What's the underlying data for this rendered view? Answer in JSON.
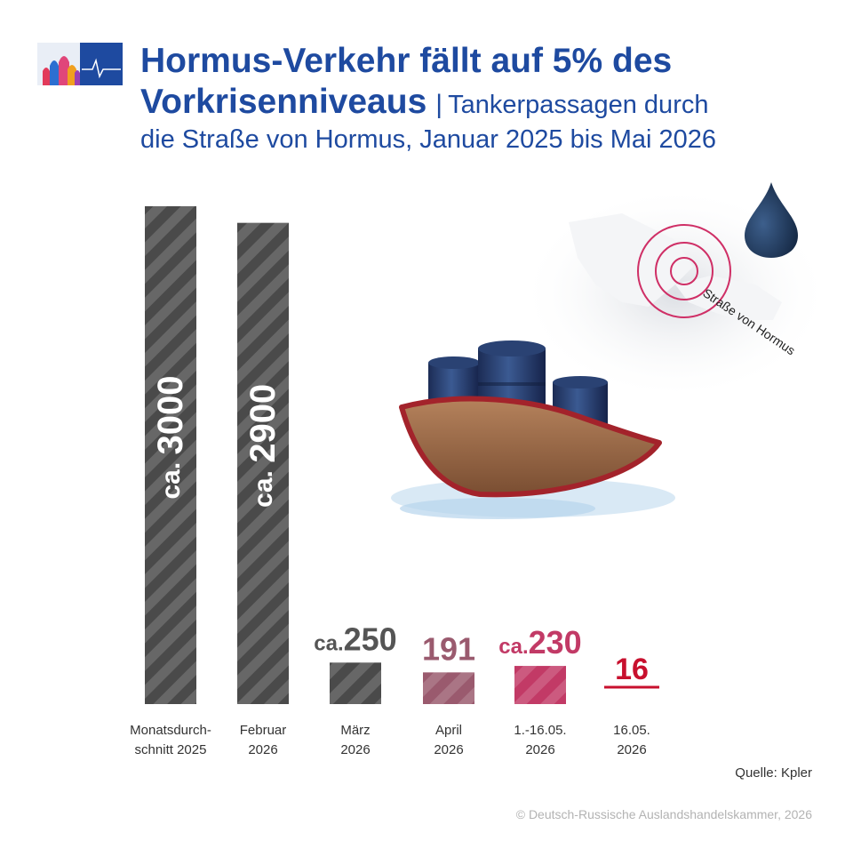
{
  "header": {
    "title_part1": "Hormus-Verkehr fällt auf 5% des",
    "title_part2": "Vorkrisenniveaus",
    "separator": "|",
    "subtitle_part1": "Tankerpassagen durch",
    "subtitle_part2": "die Straße von Hormus, Januar 2025 bis Mai 2026"
  },
  "map_label": "Straße von Hormus",
  "source": "Quelle: Kpler",
  "copyright": "© Deutsch-Russische Auslandshandelskammer, 2026",
  "colors": {
    "title": "#1e4aa0",
    "bar_dark": "#4a4a4a",
    "bar_mauve": "#9a5a6e",
    "bar_crimson": "#c23a66",
    "line_red": "#c8102e"
  },
  "chart_data": {
    "type": "bar",
    "title": "Hormus-Verkehr fällt auf 5% des Vorkrisenniveaus",
    "categories": [
      [
        "Monatsdurch-",
        "schnitt 2025"
      ],
      [
        "Februar",
        "2026"
      ],
      [
        "März",
        "2026"
      ],
      [
        "April",
        "2026"
      ],
      [
        "1.-16.05.",
        "2026"
      ],
      [
        "16.05.",
        "2026"
      ]
    ],
    "values": [
      3000,
      2900,
      250,
      191,
      230,
      16
    ],
    "labels": [
      {
        "prefix": "ca.",
        "value": "3000"
      },
      {
        "prefix": "ca.",
        "value": "2900"
      },
      {
        "prefix": "ca.",
        "value": "250"
      },
      {
        "prefix": "",
        "value": "191"
      },
      {
        "prefix": "ca.",
        "value": "230"
      },
      {
        "prefix": "",
        "value": "16"
      }
    ],
    "bar_colors": [
      "#4a4a4a",
      "#4a4a4a",
      "#4a4a4a",
      "#9a5a6e",
      "#c23a66",
      "#c8102e"
    ],
    "label_colors": [
      "#ffffff",
      "#ffffff",
      "#555555",
      "#9a5a6e",
      "#c23a66",
      "#c8102e"
    ],
    "ylim": [
      0,
      3000
    ]
  }
}
